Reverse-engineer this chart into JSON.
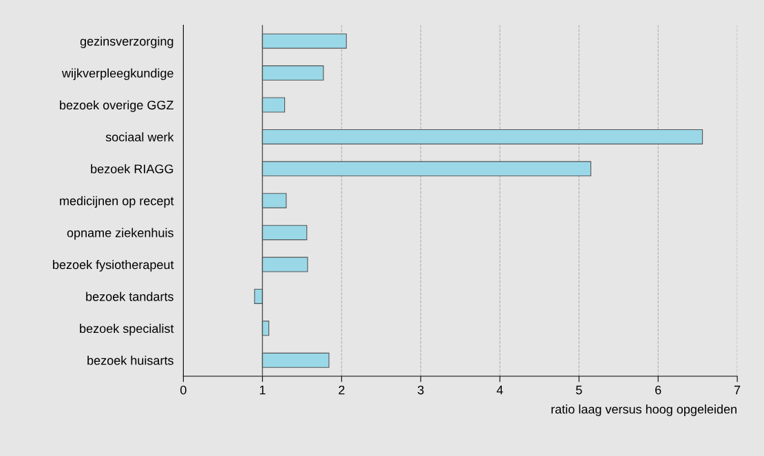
{
  "chart_data": {
    "type": "bar",
    "orientation": "horizontal",
    "xlabel": "ratio laag versus hoog opgeleiden",
    "categories": [
      "gezinsverzorging",
      "wijkverpleegkundige",
      "bezoek overige GGZ",
      "sociaal werk",
      "bezoek RIAGG",
      "medicijnen op recept",
      "opname ziekenhuis",
      "bezoek fysiotherapeut",
      "bezoek tandarts",
      "bezoek specialist",
      "bezoek huisarts"
    ],
    "base": [
      1,
      1,
      1,
      1,
      1,
      1,
      1,
      1,
      1,
      1,
      1
    ],
    "values": [
      1.06,
      0.77,
      0.28,
      5.56,
      4.15,
      0.3,
      0.56,
      0.57,
      -0.1,
      0.08,
      0.84
    ],
    "color": "#9ad8e8",
    "xlim": [
      0,
      7
    ],
    "xticks": [
      0,
      1,
      2,
      3,
      4,
      5,
      6,
      7
    ],
    "ref_lines": [
      {
        "axis": "x",
        "value": 1,
        "color": "#555555",
        "line_style": "solid"
      }
    ],
    "grid": "x"
  }
}
